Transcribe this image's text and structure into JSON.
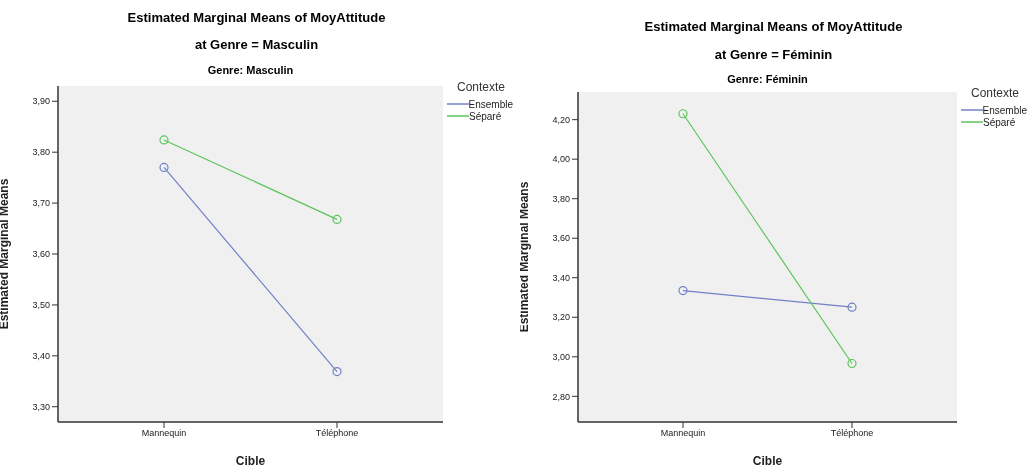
{
  "chart_data": [
    {
      "type": "line",
      "title": "Estimated Marginal Means of MoyAttitude",
      "subtitle": "at Genre = Masculin",
      "annotations": [
        "Genre: Masculin"
      ],
      "xlabel": "Cible",
      "ylabel": "Estimated Marginal Means",
      "legend_title": "Contexte",
      "legend": "top right",
      "marker": "circle",
      "grid": false,
      "categories": [
        "Mannequin",
        "Téléphone"
      ],
      "ylim": [
        3.27,
        3.93
      ],
      "yticks": [
        {
          "value": 3.3,
          "label": "3,30"
        },
        {
          "value": 3.4,
          "label": "3,40"
        },
        {
          "value": 3.5,
          "label": "3,50"
        },
        {
          "value": 3.6,
          "label": "3,60"
        },
        {
          "value": 3.7,
          "label": "3,70"
        },
        {
          "value": 3.8,
          "label": "3,80"
        },
        {
          "value": 3.9,
          "label": "3,90"
        }
      ],
      "series": [
        {
          "name": "Ensemble",
          "color": "#7080c8",
          "values": [
            3.77,
            3.369
          ]
        },
        {
          "name": "Séparé",
          "color": "#5cc45c",
          "values": [
            3.824,
            3.668
          ]
        }
      ]
    },
    {
      "type": "line",
      "title": "Estimated Marginal Means of MoyAttitude",
      "subtitle": "at Genre = Féminin",
      "annotations": [
        "Genre: Féminin"
      ],
      "xlabel": "Cible",
      "ylabel": "Estimated Marginal Means",
      "legend_title": "Contexte",
      "legend": "top right",
      "marker": "circle",
      "grid": false,
      "categories": [
        "Mannequin",
        "Téléphone"
      ],
      "ylim": [
        2.67,
        4.34
      ],
      "yticks": [
        {
          "value": 2.8,
          "label": "2,80"
        },
        {
          "value": 3.0,
          "label": "3,00"
        },
        {
          "value": 3.2,
          "label": "3,20"
        },
        {
          "value": 3.4,
          "label": "3,40"
        },
        {
          "value": 3.6,
          "label": "3,60"
        },
        {
          "value": 3.8,
          "label": "3,80"
        },
        {
          "value": 4.0,
          "label": "4,00"
        },
        {
          "value": 4.2,
          "label": "4,20"
        }
      ],
      "series": [
        {
          "name": "Ensemble",
          "color": "#7080c8",
          "values": [
            3.335,
            3.251
          ]
        },
        {
          "name": "Séparé",
          "color": "#5cc45c",
          "values": [
            4.23,
            2.966
          ]
        }
      ]
    }
  ]
}
